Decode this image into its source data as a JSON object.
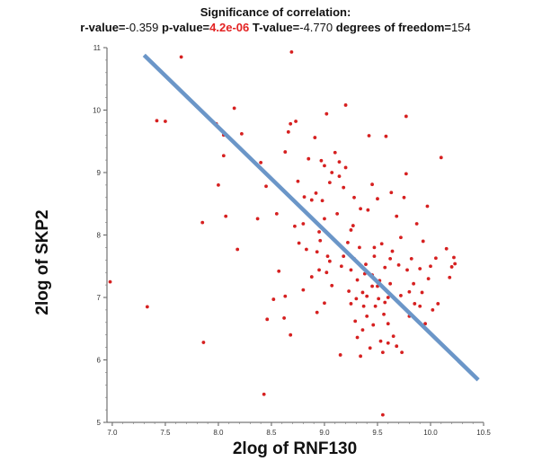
{
  "chart_data": {
    "type": "scatter",
    "title": "Significance of correlation:",
    "stats": [
      {
        "label": "r-value=",
        "value": "-0.359",
        "highlight": false
      },
      {
        "label": "p-value=",
        "value": "4.2e-06",
        "highlight": true
      },
      {
        "label": "T-value=",
        "value": "-4.770",
        "highlight": false
      },
      {
        "label": "degrees of freedom=",
        "value": "154",
        "highlight": false
      }
    ],
    "xlabel": "2log of RNF130",
    "ylabel": "2log of SKP2",
    "xlim": [
      6.95,
      10.5
    ],
    "ylim": [
      5,
      11
    ],
    "xticks": [
      "7.0",
      "7.5",
      "8.0",
      "8.5",
      "9.0",
      "9.5",
      "10.0",
      "10.5"
    ],
    "yticks": [
      "5",
      "6",
      "7",
      "8",
      "9",
      "10",
      "11"
    ],
    "point_color": "#d62020",
    "fit_color": "#6b96c8",
    "fit_line": {
      "x": [
        7.3,
        10.45
      ],
      "y": [
        10.88,
        5.68
      ]
    },
    "points": [
      [
        6.98,
        7.25
      ],
      [
        7.33,
        6.85
      ],
      [
        7.42,
        9.83
      ],
      [
        7.5,
        9.82
      ],
      [
        7.65,
        10.85
      ],
      [
        7.86,
        6.28
      ],
      [
        7.85,
        8.2
      ],
      [
        7.98,
        9.78
      ],
      [
        8.0,
        8.8
      ],
      [
        8.05,
        9.27
      ],
      [
        8.07,
        8.3
      ],
      [
        8.05,
        9.6
      ],
      [
        8.15,
        10.03
      ],
      [
        8.18,
        7.77
      ],
      [
        8.22,
        9.62
      ],
      [
        8.37,
        8.26
      ],
      [
        8.4,
        9.16
      ],
      [
        8.43,
        5.45
      ],
      [
        8.45,
        8.78
      ],
      [
        8.46,
        6.65
      ],
      [
        8.52,
        6.97
      ],
      [
        8.55,
        8.34
      ],
      [
        8.57,
        7.42
      ],
      [
        8.62,
        6.67
      ],
      [
        8.63,
        9.33
      ],
      [
        8.63,
        7.02
      ],
      [
        8.66,
        9.65
      ],
      [
        8.68,
        9.78
      ],
      [
        8.68,
        6.4
      ],
      [
        8.69,
        10.93
      ],
      [
        8.72,
        8.14
      ],
      [
        8.73,
        9.82
      ],
      [
        8.75,
        8.86
      ],
      [
        8.76,
        7.87
      ],
      [
        8.8,
        8.18
      ],
      [
        8.81,
        8.61
      ],
      [
        8.8,
        7.12
      ],
      [
        8.83,
        7.77
      ],
      [
        8.85,
        9.22
      ],
      [
        8.88,
        8.56
      ],
      [
        8.88,
        7.33
      ],
      [
        8.91,
        9.56
      ],
      [
        8.92,
        8.67
      ],
      [
        8.93,
        7.73
      ],
      [
        8.93,
        6.76
      ],
      [
        8.95,
        7.44
      ],
      [
        8.96,
        7.91
      ],
      [
        8.97,
        9.19
      ],
      [
        8.98,
        8.55
      ],
      [
        9.0,
        9.11
      ],
      [
        9.02,
        9.94
      ],
      [
        9.0,
        6.91
      ],
      [
        9.03,
        7.66
      ],
      [
        9.05,
        8.84
      ],
      [
        9.07,
        9.0
      ],
      [
        9.07,
        7.19
      ],
      [
        9.1,
        9.32
      ],
      [
        9.12,
        8.34
      ],
      [
        9.14,
        9.17
      ],
      [
        9.14,
        8.94
      ],
      [
        9.16,
        7.5
      ],
      [
        9.18,
        8.76
      ],
      [
        9.2,
        10.08
      ],
      [
        9.2,
        9.08
      ],
      [
        9.22,
        7.88
      ],
      [
        9.23,
        7.1
      ],
      [
        9.25,
        6.9
      ],
      [
        9.25,
        7.44
      ],
      [
        9.27,
        8.15
      ],
      [
        9.28,
        8.6
      ],
      [
        9.28,
        7.62
      ],
      [
        9.3,
        6.98
      ],
      [
        9.31,
        7.28
      ],
      [
        9.31,
        6.36
      ],
      [
        9.34,
        6.06
      ],
      [
        9.34,
        8.42
      ],
      [
        9.36,
        7.08
      ],
      [
        9.37,
        6.86
      ],
      [
        9.39,
        7.53
      ],
      [
        9.4,
        6.7
      ],
      [
        9.41,
        8.4
      ],
      [
        9.42,
        9.59
      ],
      [
        9.43,
        6.19
      ],
      [
        9.45,
        8.81
      ],
      [
        9.45,
        7.18
      ],
      [
        9.46,
        6.56
      ],
      [
        9.47,
        7.66
      ],
      [
        9.48,
        6.86
      ],
      [
        9.5,
        8.58
      ],
      [
        9.5,
        7.18
      ],
      [
        9.51,
        6.98
      ],
      [
        9.53,
        6.3
      ],
      [
        9.54,
        7.86
      ],
      [
        9.55,
        6.12
      ],
      [
        9.57,
        7.48
      ],
      [
        9.58,
        9.58
      ],
      [
        9.6,
        7.0
      ],
      [
        9.6,
        6.58
      ],
      [
        9.62,
        7.22
      ],
      [
        9.63,
        8.68
      ],
      [
        9.64,
        7.74
      ],
      [
        9.65,
        6.38
      ],
      [
        9.68,
        8.3
      ],
      [
        9.7,
        6.92
      ],
      [
        9.7,
        7.52
      ],
      [
        9.72,
        7.03
      ],
      [
        9.73,
        6.12
      ],
      [
        9.75,
        8.6
      ],
      [
        9.77,
        9.9
      ],
      [
        9.77,
        8.98
      ],
      [
        9.78,
        7.44
      ],
      [
        9.8,
        6.7
      ],
      [
        9.82,
        7.62
      ],
      [
        9.84,
        7.22
      ],
      [
        9.85,
        6.9
      ],
      [
        9.87,
        8.18
      ],
      [
        9.9,
        7.46
      ],
      [
        9.9,
        6.86
      ],
      [
        9.93,
        7.9
      ],
      [
        9.95,
        6.58
      ],
      [
        9.97,
        8.46
      ],
      [
        9.98,
        7.3
      ],
      [
        10.0,
        7.5
      ],
      [
        10.02,
        6.8
      ],
      [
        10.05,
        7.63
      ],
      [
        10.07,
        6.9
      ],
      [
        10.1,
        9.24
      ],
      [
        10.15,
        7.78
      ],
      [
        10.18,
        7.32
      ],
      [
        10.2,
        7.49
      ],
      [
        10.22,
        7.64
      ],
      [
        10.23,
        7.54
      ],
      [
        9.55,
        5.12
      ],
      [
        9.36,
        6.48
      ],
      [
        9.4,
        7.02
      ],
      [
        9.47,
        7.8
      ],
      [
        9.52,
        7.27
      ],
      [
        9.68,
        6.22
      ],
      [
        9.56,
        6.73
      ],
      [
        9.15,
        6.08
      ],
      [
        9.29,
        6.62
      ],
      [
        9.6,
        6.27
      ],
      [
        9.8,
        7.09
      ],
      [
        9.92,
        7.08
      ],
      [
        9.38,
        7.38
      ],
      [
        9.62,
        7.62
      ],
      [
        9.45,
        7.36
      ],
      [
        9.02,
        7.4
      ],
      [
        9.33,
        7.8
      ],
      [
        9.0,
        8.26
      ],
      [
        9.05,
        7.58
      ],
      [
        9.18,
        7.66
      ],
      [
        9.25,
        8.08
      ],
      [
        9.72,
        7.96
      ],
      [
        9.57,
        6.92
      ],
      [
        8.95,
        8.05
      ]
    ]
  }
}
